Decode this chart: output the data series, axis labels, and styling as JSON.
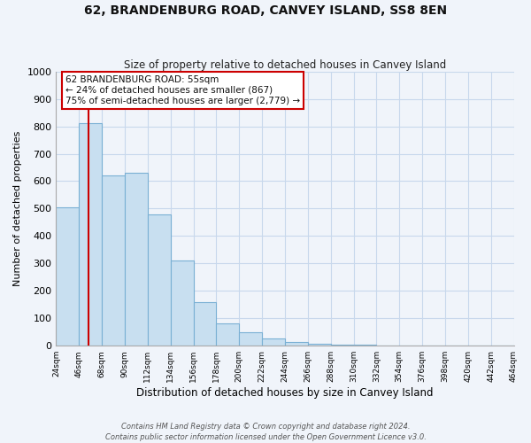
{
  "title": "62, BRANDENBURG ROAD, CANVEY ISLAND, SS8 8EN",
  "subtitle": "Size of property relative to detached houses in Canvey Island",
  "xlabel": "Distribution of detached houses by size in Canvey Island",
  "ylabel": "Number of detached properties",
  "bar_edges": [
    24,
    46,
    68,
    90,
    112,
    134,
    156,
    178,
    200,
    222,
    244,
    266,
    288,
    310,
    332,
    354,
    376,
    398,
    420,
    442,
    464
  ],
  "bar_heights": [
    505,
    810,
    620,
    630,
    480,
    310,
    160,
    80,
    48,
    25,
    13,
    8,
    5,
    3,
    2,
    1,
    1,
    0,
    0,
    0
  ],
  "bar_color": "#c8dff0",
  "bar_edge_color": "#7ab0d4",
  "property_line_x": 55,
  "property_line_color": "#cc0000",
  "ylim": [
    0,
    1000
  ],
  "annotation_title": "62 BRANDENBURG ROAD: 55sqm",
  "annotation_line1": "← 24% of detached houses are smaller (867)",
  "annotation_line2": "75% of semi-detached houses are larger (2,779) →",
  "annotation_box_color": "#ffffff",
  "annotation_box_edge": "#cc0000",
  "tick_labels": [
    "24sqm",
    "46sqm",
    "68sqm",
    "90sqm",
    "112sqm",
    "134sqm",
    "156sqm",
    "178sqm",
    "200sqm",
    "222sqm",
    "244sqm",
    "266sqm",
    "288sqm",
    "310sqm",
    "332sqm",
    "354sqm",
    "376sqm",
    "398sqm",
    "420sqm",
    "442sqm",
    "464sqm"
  ],
  "yticks": [
    0,
    100,
    200,
    300,
    400,
    500,
    600,
    700,
    800,
    900,
    1000
  ],
  "footer_line1": "Contains HM Land Registry data © Crown copyright and database right 2024.",
  "footer_line2": "Contains public sector information licensed under the Open Government Licence v3.0.",
  "grid_color": "#c8d8ec",
  "background_color": "#f0f4fa"
}
